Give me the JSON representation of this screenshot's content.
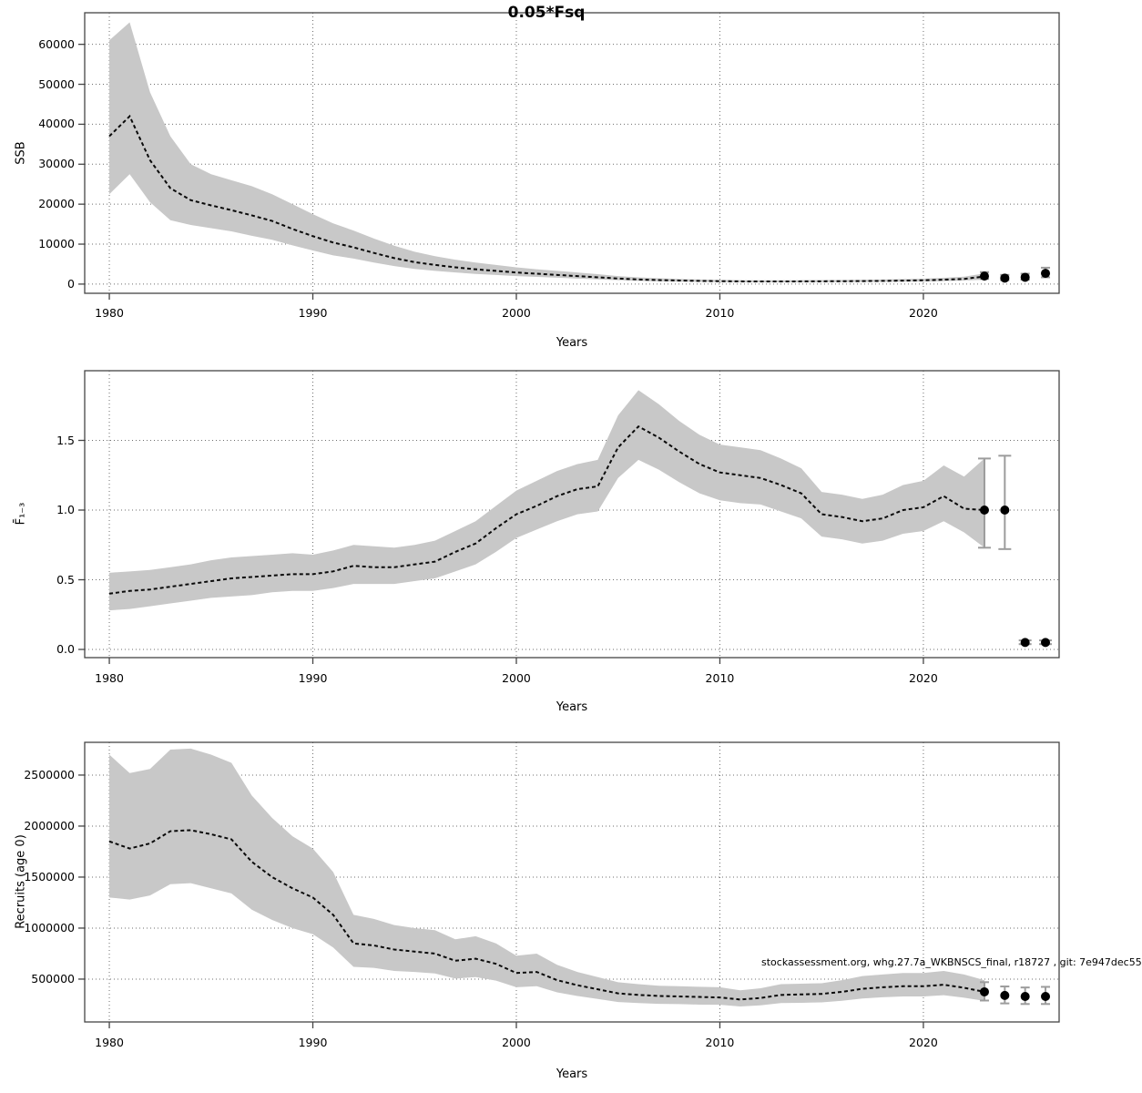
{
  "title": "0.05*Fsq",
  "attribution": "stockassessment.org, whg.27.7a_WKBNSCS_final, r18727 , git: 7e947dec55",
  "colors": {
    "band": "#c8c8c8",
    "line": "#0a0a0a",
    "grid": "#6e6e6e",
    "frame": "#454545",
    "errorbar": "#9c9c9c",
    "point": "#000000"
  },
  "chart_data": [
    {
      "type": "line",
      "panel": "ssb",
      "ylabel": "SSB",
      "xlabel": "Years",
      "grid": true,
      "xlim": [
        1978.79,
        2026.67
      ],
      "ylim": [
        -2300,
        67900
      ],
      "x_ticks": [
        {
          "value": 1980,
          "label": "1980"
        },
        {
          "value": 1990,
          "label": "1990"
        },
        {
          "value": 2000,
          "label": "2000"
        },
        {
          "value": 2010,
          "label": "2010"
        },
        {
          "value": 2020,
          "label": "2020"
        }
      ],
      "y_ticks": [
        {
          "value": 0,
          "label": "0"
        },
        {
          "value": 10000,
          "label": "10000"
        },
        {
          "value": 20000,
          "label": "20000"
        },
        {
          "value": 30000,
          "label": "30000"
        },
        {
          "value": 40000,
          "label": "40000"
        },
        {
          "value": 50000,
          "label": "50000"
        },
        {
          "value": 60000,
          "label": "60000"
        }
      ],
      "years": [
        1980,
        1981,
        1982,
        1983,
        1984,
        1985,
        1986,
        1987,
        1988,
        1989,
        1990,
        1991,
        1992,
        1993,
        1994,
        1995,
        1996,
        1997,
        1998,
        1999,
        2000,
        2001,
        2002,
        2003,
        2004,
        2005,
        2006,
        2007,
        2008,
        2009,
        2010,
        2011,
        2012,
        2013,
        2014,
        2015,
        2016,
        2017,
        2018,
        2019,
        2020,
        2021,
        2022,
        2023
      ],
      "values": [
        37000,
        42000,
        31000,
        24000,
        21000,
        19700,
        18500,
        17200,
        15800,
        13800,
        12000,
        10400,
        9200,
        7800,
        6500,
        5500,
        4800,
        4200,
        3700,
        3300,
        2900,
        2600,
        2300,
        2000,
        1700,
        1400,
        1150,
        1000,
        900,
        800,
        730,
        680,
        650,
        650,
        680,
        700,
        720,
        750,
        800,
        870,
        950,
        1100,
        1300,
        1900
      ],
      "band_upper": [
        61000,
        65500,
        48000,
        37000,
        30000,
        27500,
        26000,
        24500,
        22500,
        20000,
        17500,
        15200,
        13400,
        11400,
        9600,
        8100,
        7000,
        6100,
        5400,
        4800,
        4200,
        3700,
        3300,
        2900,
        2500,
        2000,
        1700,
        1450,
        1300,
        1150,
        1050,
        980,
        940,
        940,
        980,
        1010,
        1040,
        1080,
        1150,
        1250,
        1360,
        1570,
        1850,
        2700
      ],
      "band_lower": [
        22500,
        27500,
        20500,
        16000,
        14800,
        14000,
        13200,
        12100,
        11100,
        9700,
        8400,
        7200,
        6400,
        5400,
        4500,
        3800,
        3300,
        2900,
        2550,
        2280,
        2000,
        1800,
        1600,
        1380,
        1170,
        970,
        800,
        690,
        620,
        550,
        500,
        470,
        450,
        450,
        470,
        480,
        500,
        520,
        550,
        600,
        660,
        760,
        900,
        1100
      ],
      "forecast": [
        {
          "year": 2023,
          "value": 2000,
          "lo": 1300,
          "hi": 3000
        },
        {
          "year": 2024,
          "value": 1500,
          "lo": 1000,
          "hi": 2300
        },
        {
          "year": 2025,
          "value": 1700,
          "lo": 1100,
          "hi": 2600
        },
        {
          "year": 2026,
          "value": 2700,
          "lo": 1700,
          "hi": 4100
        }
      ]
    },
    {
      "type": "line",
      "panel": "fbar",
      "ylabel": "F̄₁₋₃",
      "xlabel": "Years",
      "grid": true,
      "xlim": [
        1978.79,
        2026.67
      ],
      "ylim": [
        -0.0588,
        2.0
      ],
      "x_ticks": [
        {
          "value": 1980,
          "label": "1980"
        },
        {
          "value": 1990,
          "label": "1990"
        },
        {
          "value": 2000,
          "label": "2000"
        },
        {
          "value": 2010,
          "label": "2010"
        },
        {
          "value": 2020,
          "label": "2020"
        }
      ],
      "y_ticks": [
        {
          "value": 0,
          "label": "0.0"
        },
        {
          "value": 0.5,
          "label": "0.5"
        },
        {
          "value": 1.0,
          "label": "1.0"
        },
        {
          "value": 1.5,
          "label": "1.5"
        }
      ],
      "years": [
        1980,
        1981,
        1982,
        1983,
        1984,
        1985,
        1986,
        1987,
        1988,
        1989,
        1990,
        1991,
        1992,
        1993,
        1994,
        1995,
        1996,
        1997,
        1998,
        1999,
        2000,
        2001,
        2002,
        2003,
        2004,
        2005,
        2006,
        2007,
        2008,
        2009,
        2010,
        2011,
        2012,
        2013,
        2014,
        2015,
        2016,
        2017,
        2018,
        2019,
        2020,
        2021,
        2022,
        2023
      ],
      "values": [
        0.4,
        0.42,
        0.43,
        0.45,
        0.47,
        0.49,
        0.51,
        0.52,
        0.53,
        0.54,
        0.54,
        0.56,
        0.6,
        0.59,
        0.59,
        0.61,
        0.63,
        0.7,
        0.76,
        0.87,
        0.97,
        1.03,
        1.1,
        1.15,
        1.17,
        1.45,
        1.6,
        1.52,
        1.42,
        1.33,
        1.27,
        1.25,
        1.23,
        1.18,
        1.12,
        0.97,
        0.95,
        0.92,
        0.94,
        1.0,
        1.02,
        1.1,
        1.01,
        1.0
      ],
      "band_upper": [
        0.55,
        0.56,
        0.57,
        0.59,
        0.61,
        0.64,
        0.66,
        0.67,
        0.68,
        0.69,
        0.68,
        0.71,
        0.75,
        0.74,
        0.73,
        0.75,
        0.78,
        0.85,
        0.92,
        1.03,
        1.14,
        1.21,
        1.28,
        1.33,
        1.36,
        1.68,
        1.86,
        1.76,
        1.64,
        1.54,
        1.47,
        1.45,
        1.43,
        1.37,
        1.3,
        1.13,
        1.11,
        1.08,
        1.11,
        1.18,
        1.21,
        1.32,
        1.24,
        1.37
      ],
      "band_lower": [
        0.28,
        0.29,
        0.31,
        0.33,
        0.35,
        0.37,
        0.38,
        0.39,
        0.41,
        0.42,
        0.42,
        0.44,
        0.47,
        0.47,
        0.47,
        0.49,
        0.51,
        0.56,
        0.61,
        0.7,
        0.8,
        0.86,
        0.92,
        0.97,
        0.99,
        1.23,
        1.36,
        1.29,
        1.2,
        1.12,
        1.07,
        1.05,
        1.04,
        0.99,
        0.94,
        0.81,
        0.79,
        0.76,
        0.78,
        0.83,
        0.85,
        0.92,
        0.84,
        0.73
      ],
      "forecast": [
        {
          "year": 2023,
          "value": 1.0,
          "lo": 0.73,
          "hi": 1.37
        },
        {
          "year": 2024,
          "value": 1.0,
          "lo": 0.72,
          "hi": 1.39
        },
        {
          "year": 2025,
          "value": 0.05,
          "lo": 0.038,
          "hi": 0.065
        },
        {
          "year": 2026,
          "value": 0.05,
          "lo": 0.038,
          "hi": 0.065
        }
      ]
    },
    {
      "type": "line",
      "panel": "recruits",
      "ylabel": "Recruits (age 0)",
      "xlabel": "Years",
      "grid": true,
      "xlim": [
        1978.79,
        2026.67
      ],
      "ylim": [
        80000,
        2821000
      ],
      "x_ticks": [
        {
          "value": 1980,
          "label": "1980"
        },
        {
          "value": 1990,
          "label": "1990"
        },
        {
          "value": 2000,
          "label": "2000"
        },
        {
          "value": 2010,
          "label": "2010"
        },
        {
          "value": 2020,
          "label": "2020"
        }
      ],
      "y_ticks": [
        {
          "value": 500000,
          "label": "500000"
        },
        {
          "value": 1000000,
          "label": "1000000"
        },
        {
          "value": 1500000,
          "label": "1500000"
        },
        {
          "value": 2000000,
          "label": "2000000"
        },
        {
          "value": 2500000,
          "label": "2500000"
        }
      ],
      "years": [
        1980,
        1981,
        1982,
        1983,
        1984,
        1985,
        1986,
        1987,
        1988,
        1989,
        1990,
        1991,
        1992,
        1993,
        1994,
        1995,
        1996,
        1997,
        1998,
        1999,
        2000,
        2001,
        2002,
        2003,
        2004,
        2005,
        2006,
        2007,
        2008,
        2009,
        2010,
        2011,
        2012,
        2013,
        2014,
        2015,
        2016,
        2017,
        2018,
        2019,
        2020,
        2021,
        2022,
        2023
      ],
      "values": [
        1850000,
        1780000,
        1830000,
        1950000,
        1960000,
        1920000,
        1870000,
        1650000,
        1500000,
        1390000,
        1300000,
        1130000,
        850000,
        830000,
        790000,
        770000,
        750000,
        680000,
        700000,
        650000,
        560000,
        570000,
        490000,
        440000,
        400000,
        360000,
        345000,
        335000,
        330000,
        325000,
        320000,
        300000,
        315000,
        345000,
        350000,
        355000,
        375000,
        405000,
        420000,
        430000,
        430000,
        445000,
        415000,
        375000
      ],
      "band_upper": [
        2700000,
        2520000,
        2560000,
        2750000,
        2760000,
        2700000,
        2620000,
        2300000,
        2080000,
        1900000,
        1780000,
        1550000,
        1130000,
        1090000,
        1030000,
        1000000,
        980000,
        890000,
        920000,
        850000,
        730000,
        750000,
        640000,
        570000,
        520000,
        470000,
        450000,
        435000,
        430000,
        425000,
        420000,
        390000,
        410000,
        450000,
        455000,
        460000,
        490000,
        530000,
        545000,
        560000,
        560000,
        580000,
        545000,
        490000
      ],
      "band_lower": [
        1300000,
        1280000,
        1320000,
        1430000,
        1440000,
        1390000,
        1340000,
        1180000,
        1080000,
        1000000,
        940000,
        810000,
        620000,
        610000,
        580000,
        570000,
        555000,
        505000,
        520000,
        485000,
        420000,
        430000,
        370000,
        335000,
        305000,
        275000,
        265000,
        258000,
        255000,
        250000,
        248000,
        232000,
        243000,
        265000,
        268000,
        272000,
        288000,
        310000,
        322000,
        330000,
        330000,
        342000,
        318000,
        287000
      ],
      "forecast": [
        {
          "year": 2023,
          "value": 375000,
          "lo": 290000,
          "hi": 470000
        },
        {
          "year": 2024,
          "value": 340000,
          "lo": 262000,
          "hi": 428000
        },
        {
          "year": 2025,
          "value": 330000,
          "lo": 256000,
          "hi": 418000
        },
        {
          "year": 2026,
          "value": 330000,
          "lo": 256000,
          "hi": 424000
        }
      ]
    }
  ]
}
